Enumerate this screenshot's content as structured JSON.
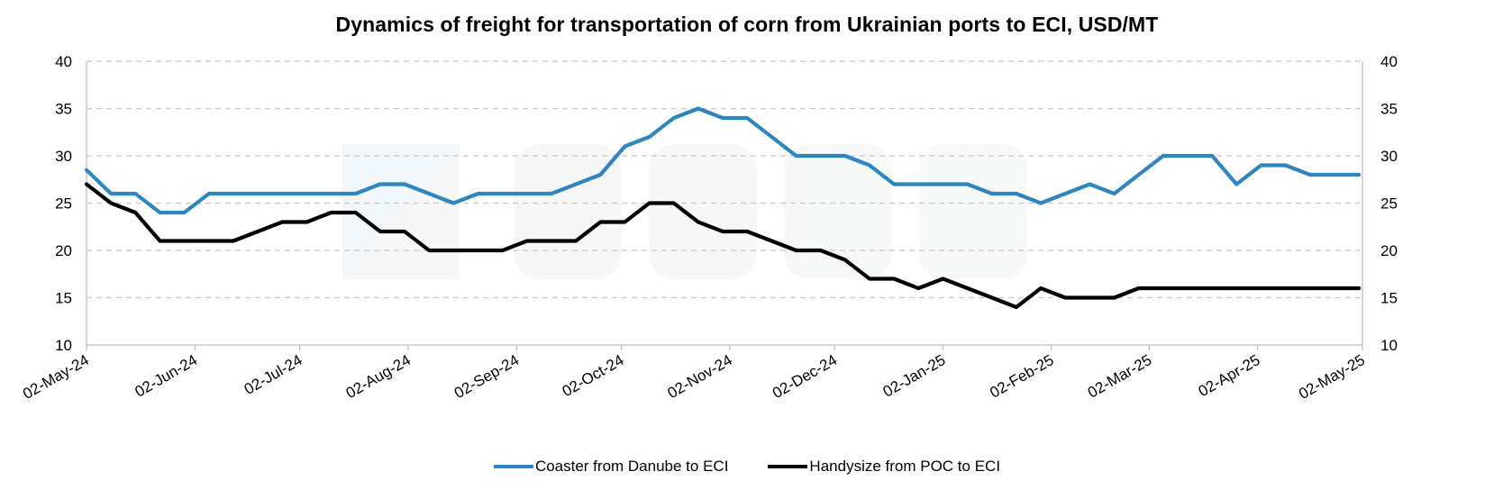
{
  "chart_data": {
    "type": "line",
    "title": "Dynamics of freight for transportation of corn from Ukrainian ports to ECI, USD/MT",
    "xlabel": "",
    "ylabel": "",
    "ylim": [
      10,
      40
    ],
    "yticks": [
      "10",
      "15",
      "20",
      "25",
      "30",
      "35",
      "40"
    ],
    "y_axis_both_sides": true,
    "grid": "horizontal dashed",
    "legend_position": "bottom",
    "x_start": "2024-05-02",
    "x_end": "2025-05-02",
    "x_ticks": [
      "02-May-24",
      "02-Jun-24",
      "02-Jul-24",
      "02-Aug-24",
      "02-Sep-24",
      "02-Oct-24",
      "02-Nov-24",
      "02-Dec-24",
      "02-Jan-25",
      "02-Feb-25",
      "02-Mar-25",
      "02-Apr-25",
      "02-May-25"
    ],
    "x": [
      "2024-05-02",
      "2024-05-09",
      "2024-05-16",
      "2024-05-23",
      "2024-05-30",
      "2024-06-06",
      "2024-06-13",
      "2024-06-20",
      "2024-06-27",
      "2024-07-04",
      "2024-07-11",
      "2024-07-18",
      "2024-07-25",
      "2024-08-01",
      "2024-08-08",
      "2024-08-15",
      "2024-08-22",
      "2024-08-29",
      "2024-09-05",
      "2024-09-12",
      "2024-09-19",
      "2024-09-26",
      "2024-10-03",
      "2024-10-10",
      "2024-10-17",
      "2024-10-24",
      "2024-10-31",
      "2024-11-07",
      "2024-11-14",
      "2024-11-21",
      "2024-11-28",
      "2024-12-05",
      "2024-12-12",
      "2024-12-19",
      "2024-12-26",
      "2025-01-02",
      "2025-01-09",
      "2025-01-16",
      "2025-01-23",
      "2025-01-30",
      "2025-02-06",
      "2025-02-13",
      "2025-02-20",
      "2025-02-27",
      "2025-03-06",
      "2025-03-13",
      "2025-03-20",
      "2025-03-27",
      "2025-04-03",
      "2025-04-10",
      "2025-04-17",
      "2025-04-24",
      "2025-05-01"
    ],
    "series": [
      {
        "name": "Coaster from Danube to ECI",
        "color": "#2e86c1",
        "values": [
          28.5,
          26,
          26,
          24,
          24,
          26,
          26,
          26,
          26,
          26,
          26,
          26,
          27,
          27,
          26,
          25,
          26,
          26,
          26,
          26,
          27,
          28,
          31,
          32,
          34,
          35,
          34,
          34,
          32,
          30,
          30,
          30,
          29,
          27,
          27,
          27,
          27,
          26,
          26,
          25,
          26,
          27,
          26,
          28,
          30,
          30,
          30,
          27,
          29,
          29,
          28,
          28,
          28
        ]
      },
      {
        "name": "Handysize from POC to ECI",
        "color": "#000000",
        "values": [
          27,
          25,
          24,
          21,
          21,
          21,
          21,
          22,
          23,
          23,
          24,
          24,
          22,
          22,
          20,
          20,
          20,
          20,
          21,
          21,
          21,
          23,
          23,
          25,
          25,
          23,
          22,
          22,
          21,
          20,
          20,
          19,
          17,
          17,
          16,
          17,
          16,
          15,
          14,
          16,
          15,
          15,
          15,
          16,
          16,
          16,
          16,
          16,
          16,
          16,
          16,
          16,
          16
        ]
      }
    ]
  }
}
